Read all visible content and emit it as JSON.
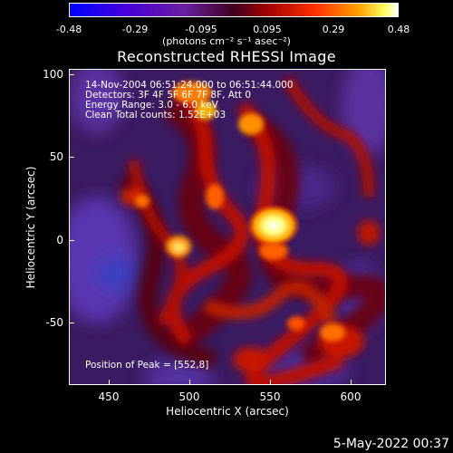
{
  "colorbar": {
    "ticks": [
      "-0.48",
      "-0.29",
      "-0.095",
      "0.095",
      "0.29",
      "0.48"
    ],
    "unit_text": "(photons cm⁻² s⁻¹ asec⁻²)"
  },
  "title": "Reconstructed RHESSI Image",
  "annotations": {
    "time_range": "14-Nov-2004 06:51:24.000 to 06:51:44.000",
    "detectors": "Detectors: 3F 4F 5F 6F 7F 8F, Att 0",
    "energy": "Energy Range: 3.0 - 6.0 keV",
    "clean": "Clean    Total counts: 1.52E+03",
    "peak": "Position of Peak = [552,8]"
  },
  "axes": {
    "x_label": "Heliocentric X (arcsec)",
    "y_label": "Heliocentric Y (arcsec)",
    "x_ticks": [
      "450",
      "500",
      "550",
      "600"
    ],
    "y_ticks": [
      "100",
      "50",
      "0",
      "-50"
    ]
  },
  "timestamp": "5-May-2022 00:37"
}
